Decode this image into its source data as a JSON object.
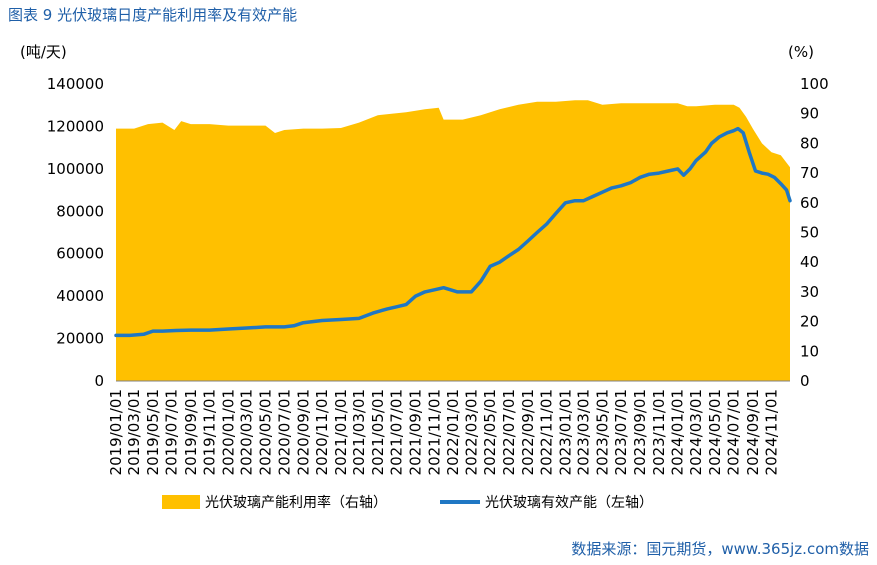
{
  "title": "图表 9  光伏玻璃日度产能利用率及有效产能",
  "source": "数据来源：国元期货，www.365jz.com数据",
  "colors": {
    "area": "#FFC000",
    "line": "#1F77C4",
    "title": "#1F5FA8"
  },
  "chart_data": {
    "type": "area+line",
    "left_unit": "(吨/天)",
    "right_unit": "(%)",
    "left_axis": {
      "min": 0,
      "max": 140000,
      "ticks": [
        "0",
        "20000",
        "40000",
        "60000",
        "80000",
        "100000",
        "120000",
        "140000"
      ]
    },
    "right_axis": {
      "min": 0,
      "max": 100,
      "ticks": [
        "0",
        "10",
        "20",
        "30",
        "40",
        "50",
        "60",
        "70",
        "80",
        "90",
        "100"
      ]
    },
    "x_tick_labels": [
      "2019/01/01",
      "2019/03/01",
      "2019/05/01",
      "2019/07/01",
      "2019/09/01",
      "2019/11/01",
      "2020/01/01",
      "2020/03/01",
      "2020/05/01",
      "2020/07/01",
      "2020/09/01",
      "2020/11/01",
      "2021/01/01",
      "2021/03/01",
      "2021/05/01",
      "2021/07/01",
      "2021/09/01",
      "2021/11/01",
      "2022/01/01",
      "2022/03/01",
      "2022/05/01",
      "2022/07/01",
      "2022/09/01",
      "2022/11/01",
      "2023/01/01",
      "2023/03/01",
      "2023/05/01",
      "2023/07/01",
      "2023/09/01",
      "2023/11/01",
      "2024/01/01",
      "2024/03/01",
      "2024/05/01",
      "2024/07/01",
      "2024/09/01",
      "2024/11/01"
    ],
    "series": [
      {
        "name": "光伏玻璃产能利用率（右轴）",
        "axis": "right",
        "kind": "area",
        "x": [
          "2019/01/01",
          "2019/03/01",
          "2019/04/15",
          "2019/06/01",
          "2019/07/10",
          "2019/08/01",
          "2019/09/01",
          "2019/11/01",
          "2020/01/01",
          "2020/03/01",
          "2020/05/01",
          "2020/06/01",
          "2020/07/01",
          "2020/09/01",
          "2020/11/01",
          "2021/01/01",
          "2021/03/01",
          "2021/05/01",
          "2021/06/15",
          "2021/08/01",
          "2021/09/01",
          "2021/10/01",
          "2021/11/15",
          "2021/12/01",
          "2022/02/01",
          "2022/04/01",
          "2022/06/01",
          "2022/08/01",
          "2022/10/01",
          "2022/12/01",
          "2023/02/01",
          "2023/03/15",
          "2023/05/01",
          "2023/07/01",
          "2023/09/01",
          "2023/11/01",
          "2024/01/01",
          "2024/02/01",
          "2024/03/01",
          "2024/05/01",
          "2024/07/01",
          "2024/07/20",
          "2024/08/10",
          "2024/09/01",
          "2024/10/01",
          "2024/11/01",
          "2024/12/01",
          "2024/12/31"
        ],
        "values": [
          85,
          85,
          86.5,
          87,
          84.5,
          87.5,
          86.5,
          86.5,
          86,
          86,
          86,
          83.5,
          84.5,
          85,
          85,
          85.2,
          87,
          89.5,
          90,
          90.5,
          91,
          91.5,
          92,
          88,
          88,
          89.5,
          91.5,
          93,
          94,
          94,
          94.5,
          94.5,
          93,
          93.5,
          93.5,
          93.5,
          93.5,
          92.5,
          92.5,
          93,
          93,
          92,
          89,
          85,
          80,
          77,
          76,
          72
        ]
      },
      {
        "name": "光伏玻璃有效产能（左轴）",
        "axis": "left",
        "kind": "line",
        "x": [
          "2019/01/01",
          "2019/02/15",
          "2019/04/01",
          "2019/05/01",
          "2019/06/01",
          "2019/07/15",
          "2019/09/01",
          "2019/11/01",
          "2020/01/01",
          "2020/03/01",
          "2020/05/01",
          "2020/07/01",
          "2020/08/01",
          "2020/09/01",
          "2020/11/01",
          "2021/01/01",
          "2021/03/01",
          "2021/04/15",
          "2021/06/01",
          "2021/07/01",
          "2021/08/01",
          "2021/09/01",
          "2021/10/01",
          "2021/11/01",
          "2021/12/01",
          "2022/01/15",
          "2022/03/01",
          "2022/04/01",
          "2022/05/01",
          "2022/06/01",
          "2022/07/01",
          "2022/08/01",
          "2022/09/01",
          "2022/10/01",
          "2022/11/01",
          "2022/12/01",
          "2023/01/01",
          "2023/02/01",
          "2023/03/01",
          "2023/04/01",
          "2023/05/01",
          "2023/06/01",
          "2023/07/01",
          "2023/08/01",
          "2023/09/01",
          "2023/10/01",
          "2023/11/01",
          "2023/12/01",
          "2024/01/01",
          "2024/01/20",
          "2024/02/10",
          "2024/03/01",
          "2024/04/01",
          "2024/04/20",
          "2024/05/15",
          "2024/06/10",
          "2024/07/01",
          "2024/07/15",
          "2024/08/01",
          "2024/08/20",
          "2024/09/10",
          "2024/10/01",
          "2024/10/20",
          "2024/11/10",
          "2024/12/01",
          "2024/12/20",
          "2024/12/31"
        ],
        "values": [
          21500,
          21500,
          22000,
          23500,
          23500,
          23800,
          24000,
          24000,
          24500,
          25000,
          25500,
          25500,
          26000,
          27500,
          28500,
          29000,
          29500,
          32000,
          34000,
          35000,
          36000,
          40000,
          42000,
          43000,
          44000,
          42000,
          42000,
          47000,
          54000,
          56000,
          59000,
          62000,
          66000,
          70000,
          74000,
          79000,
          84000,
          85000,
          85000,
          87000,
          89000,
          91000,
          92000,
          93500,
          96000,
          97500,
          98000,
          99000,
          100000,
          97000,
          100000,
          104000,
          108000,
          112000,
          115000,
          117000,
          118000,
          119000,
          117000,
          108000,
          99000,
          98000,
          97500,
          96000,
          93000,
          90000,
          85000
        ]
      }
    ],
    "legend": [
      "光伏玻璃产能利用率（右轴）",
      "光伏玻璃有效产能（左轴）"
    ]
  }
}
